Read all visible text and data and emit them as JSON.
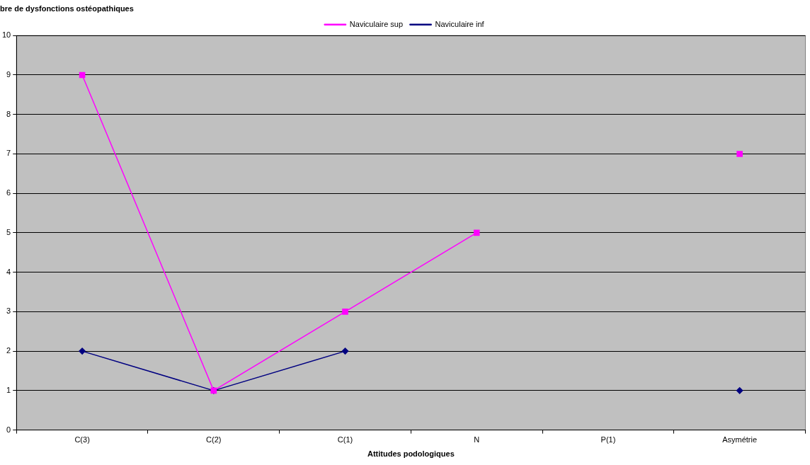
{
  "chart_data": {
    "type": "line",
    "title": "bre de dysfonctions ostéopathiques",
    "xlabel": "Attitudes podologiques",
    "categories": [
      "C(3)",
      "C(2)",
      "C(1)",
      "N",
      "P(1)",
      "Asymétrie"
    ],
    "series": [
      {
        "name": "Naviculaire inf",
        "color": "#000080",
        "marker": "diamond",
        "values": [
          2,
          1,
          2,
          null,
          null,
          1
        ]
      },
      {
        "name": "Naviculaire sup",
        "color": "#ff00ff",
        "marker": "square",
        "values": [
          9,
          1,
          3,
          5,
          null,
          7
        ]
      }
    ],
    "ylim": [
      0,
      10
    ],
    "yticks": [
      0,
      1,
      2,
      3,
      4,
      5,
      6,
      7,
      8,
      9,
      10
    ],
    "grid": "y",
    "legend": "top"
  }
}
